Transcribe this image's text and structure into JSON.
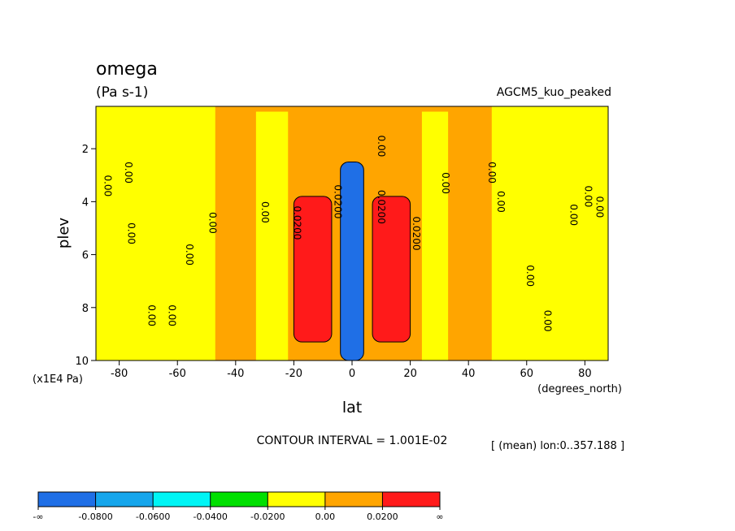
{
  "chart_data": {
    "type": "heatmap",
    "title": "omega",
    "units": "(Pa s-1)",
    "dataset_label": "AGCM5_kuo_peaked",
    "xlabel": "lat",
    "x_units": "(degrees_north)",
    "ylabel": "plev",
    "y_units": "(x1E4 Pa)",
    "xlim": [
      -88,
      88
    ],
    "ylim": [
      10,
      0.4
    ],
    "x_ticks": [
      -80,
      -60,
      -40,
      -20,
      0,
      20,
      40,
      60,
      80
    ],
    "x_tick_labels": [
      "-80",
      "-60",
      "-40",
      "-20",
      "0",
      "20",
      "40",
      "60",
      "80"
    ],
    "y_ticks": [
      2,
      4,
      6,
      8,
      10
    ],
    "y_tick_labels": [
      "2",
      "4",
      "6",
      "8",
      "10"
    ],
    "contour_interval_text": "CONTOUR INTERVAL = 1.001E-02",
    "mean_note": "[ (mean) lon:0..357.188 ]",
    "colorbar": {
      "labels": [
        "-∞",
        "-0.0800",
        "-0.0600",
        "-0.0400",
        "-0.0200",
        "0.00",
        "0.0200",
        "∞"
      ],
      "colors": [
        "#1f6fe6",
        "#16a6ec",
        "#00f5f5",
        "#00e000",
        "#ffff00",
        "#ffa500",
        "#ff1a1a"
      ]
    },
    "filled_regions": [
      {
        "level": "orange",
        "lat": [
          -88,
          88
        ],
        "plev": [
          0.4,
          10
        ]
      },
      {
        "level": "yellow",
        "lat": [
          -88,
          -47
        ],
        "plev": [
          0.4,
          10
        ]
      },
      {
        "level": "yellow",
        "lat": [
          -33,
          -22
        ],
        "plev": [
          0.6,
          10
        ]
      },
      {
        "level": "yellow",
        "lat": [
          24,
          33
        ],
        "plev": [
          0.6,
          10
        ]
      },
      {
        "level": "yellow",
        "lat": [
          48,
          88
        ],
        "plev": [
          0.4,
          10
        ]
      },
      {
        "level": "red",
        "lat": [
          -20,
          -7
        ],
        "plev": [
          3.8,
          9.3
        ]
      },
      {
        "level": "red",
        "lat": [
          7,
          20
        ],
        "plev": [
          3.8,
          9.3
        ]
      },
      {
        "level": "blue",
        "lat": [
          -4,
          4
        ],
        "plev": [
          2.5,
          10
        ]
      }
    ],
    "contour_labels": [
      {
        "text": "0.00",
        "lat": -85,
        "plev": 3.4
      },
      {
        "text": "0.00",
        "lat": -78,
        "plev": 2.9
      },
      {
        "text": "0.00",
        "lat": -77,
        "plev": 5.2
      },
      {
        "text": "0.00",
        "lat": -70,
        "plev": 8.3
      },
      {
        "text": "0.00",
        "lat": -63,
        "plev": 8.3
      },
      {
        "text": "0.00",
        "lat": -57,
        "plev": 6.0
      },
      {
        "text": "0.00",
        "lat": -49,
        "plev": 4.8
      },
      {
        "text": "0.00",
        "lat": -31,
        "plev": 4.4
      },
      {
        "text": "0.0200",
        "lat": -20,
        "plev": 4.8
      },
      {
        "text": "0.0200",
        "lat": -6,
        "plev": 4.0
      },
      {
        "text": "0.00",
        "lat": 9,
        "plev": 1.9
      },
      {
        "text": "0.0200",
        "lat": 9,
        "plev": 4.2
      },
      {
        "text": "0.0200",
        "lat": 21,
        "plev": 5.2
      },
      {
        "text": "0.00",
        "lat": 31,
        "plev": 3.3
      },
      {
        "text": "0.00",
        "lat": 47,
        "plev": 2.9
      },
      {
        "text": "0.00",
        "lat": 50,
        "plev": 4.0
      },
      {
        "text": "0.00",
        "lat": 60,
        "plev": 6.8
      },
      {
        "text": "0.00",
        "lat": 66,
        "plev": 8.5
      },
      {
        "text": "0.00",
        "lat": 75,
        "plev": 4.5
      },
      {
        "text": "0.00",
        "lat": 80,
        "plev": 3.8
      },
      {
        "text": "0.00",
        "lat": 84,
        "plev": 4.2
      }
    ]
  }
}
